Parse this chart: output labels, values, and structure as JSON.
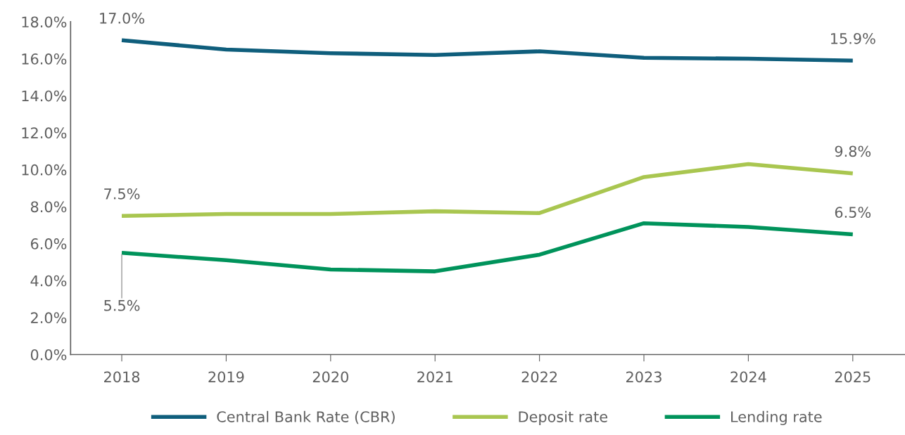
{
  "chart_data": {
    "type": "line",
    "categories": [
      "2018",
      "2019",
      "2020",
      "2021",
      "2022",
      "2023",
      "2024",
      "2025"
    ],
    "series": [
      {
        "name": "Central Bank Rate (CBR)",
        "color": "#0f5e7c",
        "values": [
          17.0,
          16.5,
          16.3,
          16.2,
          16.4,
          16.05,
          16.0,
          15.9
        ],
        "value_labels": [
          "17.0%",
          null,
          null,
          null,
          null,
          null,
          null,
          "15.9%"
        ]
      },
      {
        "name": "Deposit rate",
        "color": "#a9c650",
        "values": [
          7.5,
          7.6,
          7.6,
          7.75,
          7.65,
          9.6,
          10.3,
          9.8
        ],
        "value_labels": [
          "7.5%",
          null,
          null,
          null,
          null,
          null,
          null,
          "9.8%"
        ]
      },
      {
        "name": "Lending rate",
        "color": "#00935b",
        "values": [
          5.5,
          5.1,
          4.6,
          4.5,
          5.4,
          7.1,
          6.9,
          6.5
        ],
        "value_labels": [
          "5.5%",
          null,
          null,
          null,
          null,
          null,
          null,
          "6.5%"
        ]
      }
    ],
    "ylim": [
      0,
      18
    ],
    "yticks": [
      {
        "value": 0,
        "label": "0.0%"
      },
      {
        "value": 2,
        "label": "2.0%"
      },
      {
        "value": 4,
        "label": "4.0%"
      },
      {
        "value": 6,
        "label": "6.0%"
      },
      {
        "value": 8,
        "label": "8.0%"
      },
      {
        "value": 10,
        "label": "10.0%"
      },
      {
        "value": 12,
        "label": "12.0%"
      },
      {
        "value": 14,
        "label": "14.0%"
      },
      {
        "value": 16,
        "label": "16.0%"
      },
      {
        "value": 18,
        "label": "18.0%"
      }
    ],
    "grid": false,
    "legend": "bottom",
    "marker": "none",
    "line_style": "solid"
  }
}
